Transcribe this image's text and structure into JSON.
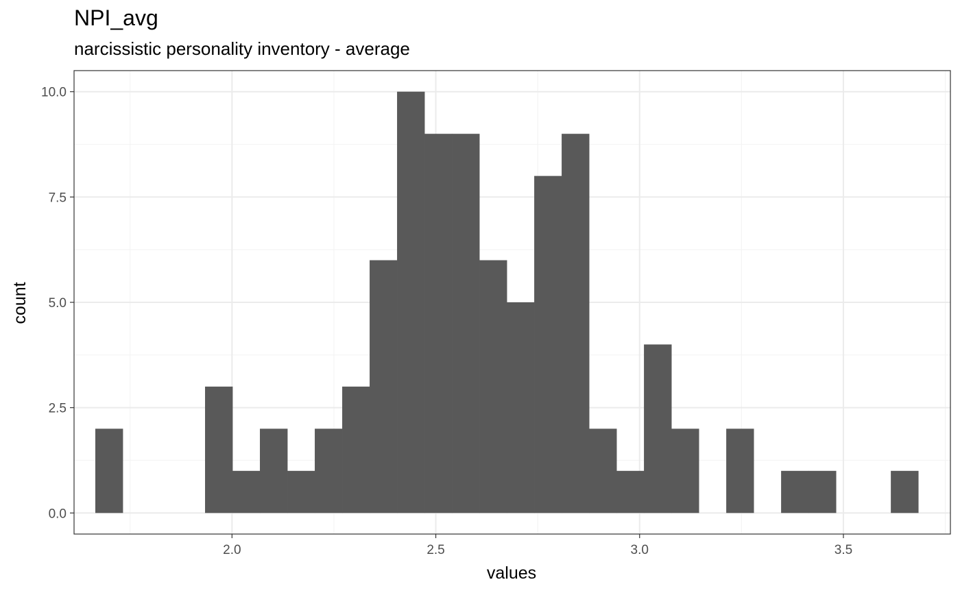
{
  "chart_data": {
    "type": "bar",
    "title": "NPI_avg",
    "subtitle": "narcissistic personality inventory - average",
    "xlabel": "values",
    "ylabel": "count",
    "xlim": [
      1.6125,
      3.7625
    ],
    "ylim": [
      -0.5,
      10.5
    ],
    "x_ticks": [
      2.0,
      2.5,
      3.0,
      3.5
    ],
    "x_tick_labels": [
      "2.0",
      "2.5",
      "3.0",
      "3.5"
    ],
    "y_ticks": [
      0.0,
      2.5,
      5.0,
      7.5,
      10.0
    ],
    "y_tick_labels": [
      "0.0",
      "2.5",
      "5.0",
      "7.5",
      "10.0"
    ],
    "grid": true,
    "bin_width": 0.0673,
    "bin_centers": [
      1.6983,
      1.7656,
      1.8329,
      1.9002,
      1.9675,
      2.0348,
      2.1021,
      2.1694,
      2.2367,
      2.304,
      2.3713,
      2.4386,
      2.5059,
      2.5732,
      2.6405,
      2.7078,
      2.7751,
      2.8424,
      2.9097,
      2.977,
      3.0443,
      3.1116,
      3.1789,
      3.2462,
      3.3135,
      3.3808,
      3.4481,
      3.5154,
      3.5827,
      3.65
    ],
    "counts": [
      2,
      0,
      0,
      0,
      3,
      1,
      2,
      1,
      2,
      3,
      6,
      10,
      9,
      9,
      6,
      5,
      8,
      9,
      2,
      1,
      4,
      2,
      0,
      2,
      0,
      1,
      1,
      0,
      0,
      1
    ],
    "colors": {
      "bar": "#595959",
      "panel_border": "#333333",
      "grid_major": "#ebebeb",
      "grid_minor": "#f4f4f4"
    }
  }
}
